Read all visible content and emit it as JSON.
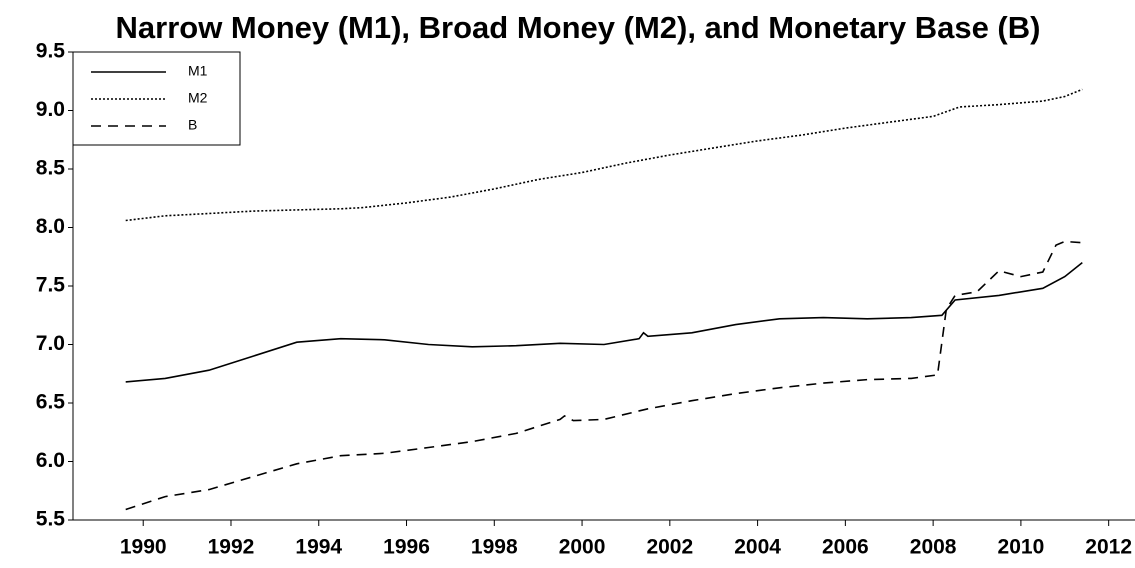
{
  "chart_data": {
    "type": "line",
    "title": "Narrow Money (M1), Broad Money (M2), and Monetary Base (B)",
    "xlim": [
      1988.4,
      2012.6
    ],
    "ylim": [
      5.5,
      9.5
    ],
    "xticks": [
      1990,
      1992,
      1994,
      1996,
      1998,
      2000,
      2002,
      2004,
      2006,
      2008,
      2010,
      2012
    ],
    "yticks": [
      5.5,
      {
        "value": 6,
        "label": "6.0"
      },
      6.5,
      {
        "value": 7,
        "label": "7.0"
      },
      7.5,
      {
        "value": 8,
        "label": "8.0"
      },
      8.5,
      {
        "value": 9,
        "label": "9.0"
      },
      9.5
    ],
    "legend": "upper left",
    "series": [
      {
        "name": "M1",
        "color": "#000000",
        "dash": "solid",
        "x": [
          1989.6,
          1990.5,
          1991.5,
          1992.5,
          1993.5,
          1994.5,
          1995.5,
          1996.5,
          1997.5,
          1998.5,
          1999.5,
          2000.5,
          2001.3,
          2001.4,
          2001.5,
          2002.5,
          2003.5,
          2004.5,
          2005.5,
          2006.5,
          2007.5,
          2008.2,
          2008.5,
          2009.5,
          2010.5,
          2011,
          2011.4
        ],
        "values": [
          6.68,
          6.71,
          6.78,
          6.9,
          7.02,
          7.05,
          7.04,
          7.0,
          6.98,
          6.99,
          7.01,
          7.0,
          7.05,
          7.1,
          7.07,
          7.1,
          7.17,
          7.22,
          7.23,
          7.22,
          7.23,
          7.25,
          7.38,
          7.42,
          7.48,
          7.58,
          7.7
        ]
      },
      {
        "name": "M2",
        "color": "#000000",
        "dash": "dotted",
        "x": [
          1989.6,
          1990.5,
          1991.5,
          1992.5,
          1993.5,
          1994.5,
          1995,
          1996,
          1997,
          1998,
          1999,
          2000,
          2001,
          2002,
          2003,
          2004,
          2005,
          2006,
          2007,
          2008,
          2008.6,
          2009.5,
          2010.5,
          2011,
          2011.4
        ],
        "values": [
          8.06,
          8.1,
          8.12,
          8.14,
          8.15,
          8.16,
          8.17,
          8.21,
          8.26,
          8.33,
          8.41,
          8.47,
          8.55,
          8.62,
          8.68,
          8.74,
          8.79,
          8.85,
          8.9,
          8.95,
          9.03,
          9.05,
          9.08,
          9.12,
          9.18
        ]
      },
      {
        "name": "B",
        "color": "#000000",
        "dash": "dashed",
        "x": [
          1989.6,
          1990.5,
          1991.5,
          1992.5,
          1993.5,
          1994.5,
          1995.5,
          1996.5,
          1997.5,
          1998.5,
          1999.5,
          1999.6,
          1999.8,
          2000.5,
          2001.5,
          2002.5,
          2003.5,
          2004.5,
          2005.5,
          2006.5,
          2007.5,
          2008.1,
          2008.3,
          2008.5,
          2009,
          2009.5,
          2010,
          2010.5,
          2010.8,
          2011,
          2011.4
        ],
        "values": [
          5.59,
          5.7,
          5.76,
          5.87,
          5.98,
          6.05,
          6.07,
          6.12,
          6.17,
          6.24,
          6.36,
          6.39,
          6.35,
          6.36,
          6.45,
          6.52,
          6.58,
          6.63,
          6.67,
          6.7,
          6.71,
          6.74,
          7.3,
          7.42,
          7.45,
          7.63,
          7.58,
          7.62,
          7.85,
          7.88,
          7.87
        ]
      }
    ]
  }
}
